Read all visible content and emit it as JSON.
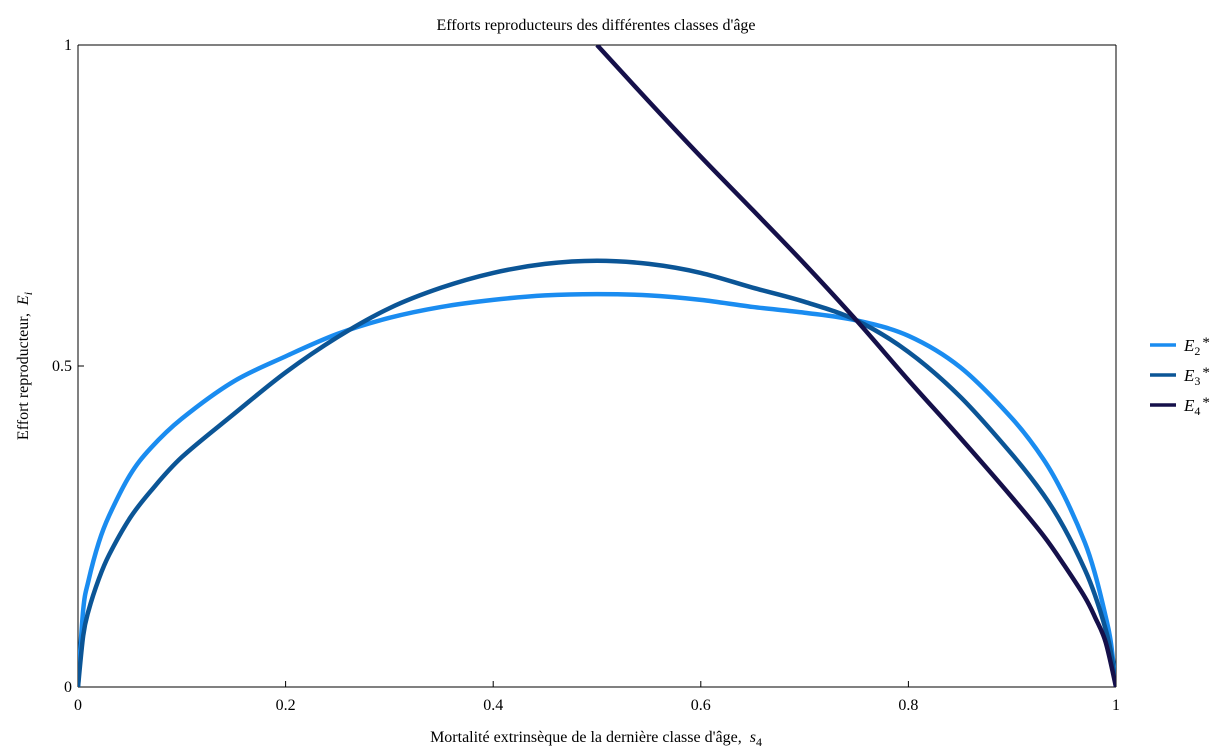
{
  "chart_data": {
    "type": "line",
    "title": "Efforts reproducteurs des différentes classes d'âge",
    "xlabel": "Mortalité extrinsèque de la dernière classe d'âge,",
    "xlabel_var": "s",
    "xlabel_sub": "4",
    "ylabel": "Effort reproducteur,",
    "ylabel_var": "E",
    "ylabel_sub": "i",
    "xlim": [
      0,
      1
    ],
    "ylim": [
      0,
      1
    ],
    "x_ticks": [
      {
        "value": 0,
        "label": "0"
      },
      {
        "value": 0.2,
        "label": "0.2"
      },
      {
        "value": 0.4,
        "label": "0.4"
      },
      {
        "value": 0.6,
        "label": "0.6"
      },
      {
        "value": 0.8,
        "label": "0.8"
      },
      {
        "value": 1,
        "label": "1"
      }
    ],
    "y_ticks": [
      {
        "value": 0,
        "label": "0"
      },
      {
        "value": 0.5,
        "label": "0.5"
      },
      {
        "value": 1,
        "label": "1"
      }
    ],
    "grid": false,
    "legend_position": "right",
    "series": [
      {
        "name": "E2*",
        "legend_var": "E",
        "legend_sub": "2",
        "legend_sup": "*",
        "color": "#1a8cf0",
        "points": [
          [
            0,
            0
          ],
          [
            0.005,
            0.12
          ],
          [
            0.01,
            0.165
          ],
          [
            0.02,
            0.225
          ],
          [
            0.03,
            0.267
          ],
          [
            0.05,
            0.33
          ],
          [
            0.07,
            0.372
          ],
          [
            0.1,
            0.418
          ],
          [
            0.15,
            0.476
          ],
          [
            0.2,
            0.515
          ],
          [
            0.25,
            0.55
          ],
          [
            0.3,
            0.575
          ],
          [
            0.35,
            0.592
          ],
          [
            0.4,
            0.603
          ],
          [
            0.45,
            0.61
          ],
          [
            0.5,
            0.612
          ],
          [
            0.55,
            0.61
          ],
          [
            0.6,
            0.603
          ],
          [
            0.65,
            0.592
          ],
          [
            0.7,
            0.583
          ],
          [
            0.75,
            0.571
          ],
          [
            0.8,
            0.547
          ],
          [
            0.85,
            0.498
          ],
          [
            0.9,
            0.418
          ],
          [
            0.93,
            0.355
          ],
          [
            0.95,
            0.298
          ],
          [
            0.97,
            0.225
          ],
          [
            0.98,
            0.175
          ],
          [
            0.99,
            0.11
          ],
          [
            0.995,
            0.07
          ],
          [
            1,
            0
          ]
        ]
      },
      {
        "name": "E3*",
        "legend_var": "E",
        "legend_sub": "3",
        "legend_sup": "*",
        "color": "#0b5596",
        "points": [
          [
            0,
            0
          ],
          [
            0.005,
            0.08
          ],
          [
            0.01,
            0.118
          ],
          [
            0.02,
            0.168
          ],
          [
            0.03,
            0.206
          ],
          [
            0.05,
            0.263
          ],
          [
            0.07,
            0.305
          ],
          [
            0.1,
            0.358
          ],
          [
            0.15,
            0.425
          ],
          [
            0.2,
            0.49
          ],
          [
            0.25,
            0.545
          ],
          [
            0.3,
            0.59
          ],
          [
            0.35,
            0.622
          ],
          [
            0.4,
            0.645
          ],
          [
            0.45,
            0.659
          ],
          [
            0.5,
            0.664
          ],
          [
            0.55,
            0.659
          ],
          [
            0.6,
            0.645
          ],
          [
            0.65,
            0.622
          ],
          [
            0.7,
            0.6
          ],
          [
            0.75,
            0.571
          ],
          [
            0.8,
            0.522
          ],
          [
            0.85,
            0.452
          ],
          [
            0.9,
            0.362
          ],
          [
            0.93,
            0.3
          ],
          [
            0.95,
            0.248
          ],
          [
            0.97,
            0.183
          ],
          [
            0.98,
            0.142
          ],
          [
            0.99,
            0.09
          ],
          [
            0.995,
            0.055
          ],
          [
            1,
            0
          ]
        ]
      },
      {
        "name": "E4*",
        "legend_var": "E",
        "legend_sub": "4",
        "legend_sup": "*",
        "color": "#15104a",
        "points": [
          [
            0.5,
            1
          ],
          [
            0.55,
            0.912
          ],
          [
            0.6,
            0.826
          ],
          [
            0.65,
            0.743
          ],
          [
            0.7,
            0.659
          ],
          [
            0.75,
            0.571
          ],
          [
            0.8,
            0.478
          ],
          [
            0.85,
            0.388
          ],
          [
            0.9,
            0.295
          ],
          [
            0.93,
            0.236
          ],
          [
            0.95,
            0.19
          ],
          [
            0.97,
            0.14
          ],
          [
            0.98,
            0.108
          ],
          [
            0.99,
            0.07
          ],
          [
            1,
            0
          ]
        ]
      }
    ]
  }
}
